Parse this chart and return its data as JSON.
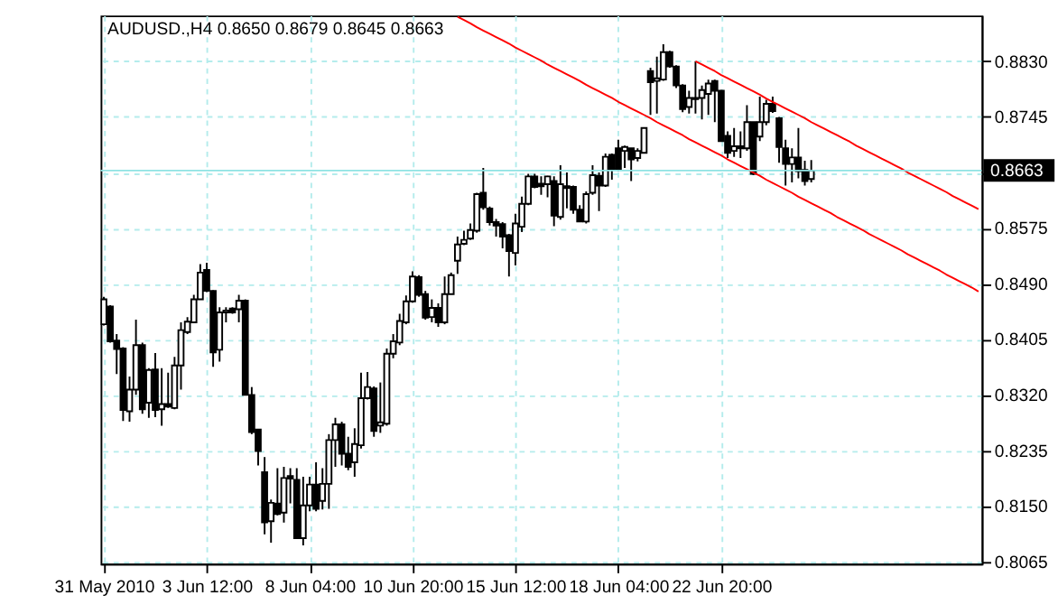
{
  "chart_data": {
    "type": "candlestick",
    "title": "AUDUSD.,H4  0.8650 0.8679 0.8645 0.8663",
    "categories": [
      "31 May 2010",
      null,
      null,
      null,
      null,
      null,
      null,
      null,
      null,
      null,
      null,
      null,
      null,
      null,
      null,
      null,
      "3 Jun 12:00",
      null,
      null,
      null,
      null,
      null,
      null,
      null,
      null,
      null,
      null,
      null,
      null,
      null,
      null,
      null,
      "8 Jun 04:00",
      null,
      null,
      null,
      null,
      null,
      null,
      null,
      null,
      null,
      null,
      null,
      null,
      null,
      null,
      null,
      "10 Jun 20:00",
      null,
      null,
      null,
      null,
      null,
      null,
      null,
      null,
      null,
      null,
      null,
      null,
      null,
      null,
      null,
      "15 Jun 12:00",
      null,
      null,
      null,
      null,
      null,
      null,
      null,
      null,
      null,
      null,
      null,
      null,
      null,
      null,
      null,
      "18 Jun 04:00",
      null,
      null,
      null,
      null,
      null,
      null,
      null,
      null,
      null,
      null,
      null,
      null,
      null,
      null,
      null,
      "22 Jun 20:00",
      null,
      null,
      null,
      null,
      null,
      null,
      null,
      null,
      null,
      null,
      null,
      null,
      null,
      null,
      null,
      null,
      null,
      null,
      null,
      null,
      null,
      null,
      null,
      null,
      null,
      null,
      null,
      null,
      null,
      null,
      null,
      null,
      null,
      null,
      null,
      null,
      null,
      null,
      null,
      null
    ],
    "ohlc": [
      [
        0.8428,
        0.847,
        0.8426,
        0.8466
      ],
      [
        0.8455,
        0.8457,
        0.84,
        0.8402
      ],
      [
        0.8403,
        0.8413,
        0.8352,
        0.839
      ],
      [
        0.8391,
        0.8393,
        0.828,
        0.8297
      ],
      [
        0.8295,
        0.8348,
        0.8279,
        0.8328
      ],
      [
        0.8328,
        0.8435,
        0.832,
        0.8396
      ],
      [
        0.8396,
        0.84,
        0.8291,
        0.8298
      ],
      [
        0.8308,
        0.8361,
        0.8285,
        0.8358
      ],
      [
        0.8359,
        0.8384,
        0.8286,
        0.8297
      ],
      [
        0.8298,
        0.8361,
        0.8273,
        0.8306
      ],
      [
        0.8306,
        0.8354,
        0.83,
        0.8302
      ],
      [
        0.83,
        0.8378,
        0.8298,
        0.8365
      ],
      [
        0.8365,
        0.8431,
        0.8328,
        0.8419
      ],
      [
        0.8416,
        0.8439,
        0.8413,
        0.8432
      ],
      [
        0.8431,
        0.8473,
        0.8431,
        0.8466
      ],
      [
        0.8466,
        0.852,
        0.8466,
        0.8507
      ],
      [
        0.8511,
        0.8522,
        0.8477,
        0.8479
      ],
      [
        0.8479,
        0.848,
        0.8363,
        0.8385
      ],
      [
        0.8389,
        0.8454,
        0.8371,
        0.8446
      ],
      [
        0.8446,
        0.8454,
        0.8431,
        0.8449
      ],
      [
        0.8452,
        0.8454,
        0.8444,
        0.8446
      ],
      [
        0.8451,
        0.8473,
        0.8431,
        0.8464
      ],
      [
        0.8464,
        0.8466,
        0.832,
        0.832
      ],
      [
        0.832,
        0.8332,
        0.826,
        0.8263
      ],
      [
        0.8267,
        0.8267,
        0.8212,
        0.8234
      ],
      [
        0.8202,
        0.8225,
        0.8107,
        0.8125
      ],
      [
        0.8127,
        0.816,
        0.8094,
        0.8155
      ],
      [
        0.8154,
        0.8208,
        0.8136,
        0.8138
      ],
      [
        0.814,
        0.821,
        0.8125,
        0.8193
      ],
      [
        0.8196,
        0.8208,
        0.8154,
        0.8192
      ],
      [
        0.819,
        0.8208,
        0.8101,
        0.8101
      ],
      [
        0.8101,
        0.8195,
        0.809,
        0.8151
      ],
      [
        0.8151,
        0.8195,
        0.8142,
        0.8183
      ],
      [
        0.8183,
        0.8217,
        0.8142,
        0.8146
      ],
      [
        0.8158,
        0.8208,
        0.8145,
        0.8184
      ],
      [
        0.8184,
        0.826,
        0.8146,
        0.8251
      ],
      [
        0.8251,
        0.8285,
        0.821,
        0.8275
      ],
      [
        0.8275,
        0.8279,
        0.8212,
        0.823
      ],
      [
        0.823,
        0.8256,
        0.8205,
        0.821
      ],
      [
        0.8217,
        0.8269,
        0.8195,
        0.8245
      ],
      [
        0.8243,
        0.8354,
        0.8238,
        0.8315
      ],
      [
        0.8315,
        0.8355,
        0.8313,
        0.8332
      ],
      [
        0.833,
        0.8333,
        0.8256,
        0.8265
      ],
      [
        0.8273,
        0.8339,
        0.8262,
        0.8278
      ],
      [
        0.8276,
        0.8391,
        0.8273,
        0.8383
      ],
      [
        0.8383,
        0.8413,
        0.8376,
        0.8402
      ],
      [
        0.84,
        0.8444,
        0.8396,
        0.8433
      ],
      [
        0.8431,
        0.8472,
        0.8428,
        0.8463
      ],
      [
        0.8463,
        0.8509,
        0.8461,
        0.8501
      ],
      [
        0.85,
        0.8503,
        0.847,
        0.8473
      ],
      [
        0.8474,
        0.8479,
        0.8435,
        0.8438
      ],
      [
        0.8439,
        0.8466,
        0.8431,
        0.8453
      ],
      [
        0.8453,
        0.846,
        0.8424,
        0.8431
      ],
      [
        0.8431,
        0.8501,
        0.8428,
        0.8474
      ],
      [
        0.8474,
        0.8507,
        0.8474,
        0.8503
      ],
      [
        0.8525,
        0.8562,
        0.8505,
        0.855
      ],
      [
        0.8551,
        0.8571,
        0.8549,
        0.8557
      ],
      [
        0.8559,
        0.8582,
        0.8557,
        0.8572
      ],
      [
        0.8571,
        0.8629,
        0.8568,
        0.8627
      ],
      [
        0.8629,
        0.8667,
        0.8603,
        0.8607
      ],
      [
        0.8605,
        0.8608,
        0.8579,
        0.8584
      ],
      [
        0.8584,
        0.8589,
        0.8562,
        0.8579
      ],
      [
        0.8581,
        0.8584,
        0.8544,
        0.8562
      ],
      [
        0.8564,
        0.8566,
        0.8501,
        0.854
      ],
      [
        0.8537,
        0.8597,
        0.8518,
        0.8582
      ],
      [
        0.8577,
        0.8623,
        0.8569,
        0.8612
      ],
      [
        0.8612,
        0.8658,
        0.861,
        0.8654
      ],
      [
        0.8654,
        0.8658,
        0.8636,
        0.8638
      ],
      [
        0.8643,
        0.8654,
        0.8626,
        0.8639
      ],
      [
        0.8642,
        0.8655,
        0.8622,
        0.8654
      ],
      [
        0.8647,
        0.8654,
        0.8578,
        0.8594
      ],
      [
        0.8592,
        0.8671,
        0.8588,
        0.8642
      ],
      [
        0.8639,
        0.866,
        0.8605,
        0.8636
      ],
      [
        0.8638,
        0.864,
        0.8597,
        0.8603
      ],
      [
        0.8603,
        0.861,
        0.8584,
        0.8585
      ],
      [
        0.8585,
        0.8631,
        0.8582,
        0.8627
      ],
      [
        0.8629,
        0.8671,
        0.8626,
        0.8656
      ],
      [
        0.8655,
        0.866,
        0.8601,
        0.864
      ],
      [
        0.864,
        0.8689,
        0.8638,
        0.8684
      ],
      [
        0.8687,
        0.8689,
        0.8649,
        0.8664
      ],
      [
        0.8697,
        0.871,
        0.8662,
        0.8664
      ],
      [
        0.8693,
        0.8701,
        0.8667,
        0.8699
      ],
      [
        0.8697,
        0.8697,
        0.8647,
        0.868
      ],
      [
        0.8682,
        0.8697,
        0.8677,
        0.8693
      ],
      [
        0.869,
        0.8728,
        0.8689,
        0.8728
      ],
      [
        0.8815,
        0.882,
        0.8748,
        0.8798
      ],
      [
        0.88,
        0.8837,
        0.875,
        0.8804
      ],
      [
        0.8802,
        0.8856,
        0.88,
        0.8844
      ],
      [
        0.8844,
        0.8846,
        0.882,
        0.8822
      ],
      [
        0.8822,
        0.8824,
        0.8789,
        0.8793
      ],
      [
        0.8793,
        0.8795,
        0.8752,
        0.8757
      ],
      [
        0.876,
        0.8785,
        0.875,
        0.8774
      ],
      [
        0.8774,
        0.883,
        0.875,
        0.8772
      ],
      [
        0.8774,
        0.8793,
        0.8741,
        0.8786
      ],
      [
        0.878,
        0.8802,
        0.8748,
        0.8796
      ],
      [
        0.88,
        0.8802,
        0.8737,
        0.8785
      ],
      [
        0.8785,
        0.8786,
        0.8708,
        0.8708
      ],
      [
        0.8716,
        0.8723,
        0.8682,
        0.869
      ],
      [
        0.8693,
        0.8728,
        0.8684,
        0.87
      ],
      [
        0.87,
        0.8723,
        0.8682,
        0.8697
      ],
      [
        0.8697,
        0.8763,
        0.8693,
        0.8737
      ],
      [
        0.8737,
        0.8737,
        0.8656,
        0.8658
      ],
      [
        0.8715,
        0.8776,
        0.8708,
        0.8737
      ],
      [
        0.8737,
        0.8771,
        0.8732,
        0.8765
      ],
      [
        0.8765,
        0.8776,
        0.8751,
        0.8754
      ],
      [
        0.8743,
        0.8745,
        0.8675,
        0.8699
      ],
      [
        0.8697,
        0.871,
        0.864,
        0.8673
      ],
      [
        0.8673,
        0.8697,
        0.8645,
        0.8683
      ],
      [
        0.8683,
        0.8728,
        0.8651,
        0.8662
      ],
      [
        0.8664,
        0.8678,
        0.864,
        0.8647
      ],
      [
        0.865,
        0.8679,
        0.8645,
        0.8663
      ],
      null,
      null,
      null,
      null,
      null,
      null,
      null,
      null,
      null,
      null,
      null,
      null,
      null,
      null,
      null,
      null,
      null,
      null,
      null,
      null,
      null,
      null,
      null,
      null,
      null,
      null
    ],
    "series": [
      {
        "type": "line",
        "color": "#ff0000",
        "values": [
          null,
          null,
          null,
          null,
          null,
          null,
          null,
          null,
          null,
          null,
          null,
          null,
          null,
          null,
          null,
          null,
          null,
          null,
          null,
          null,
          null,
          null,
          null,
          null,
          null,
          null,
          null,
          null,
          null,
          null,
          null,
          null,
          null,
          null,
          null,
          null,
          null,
          null,
          null,
          null,
          null,
          null,
          null,
          null,
          null,
          null,
          null,
          null,
          null,
          null,
          null,
          null,
          null,
          null,
          null,
          null,
          null,
          null,
          null,
          null,
          null,
          null,
          null,
          null,
          null,
          null,
          null,
          null,
          null,
          null,
          null,
          null,
          null,
          null,
          null,
          null,
          null,
          null,
          null,
          null,
          null,
          null,
          null,
          null,
          null,
          null,
          null,
          null,
          null,
          null,
          null,
          null,
          0.883,
          0.8825,
          0.882,
          0.8815,
          0.8809,
          0.8804,
          0.8799,
          0.8794,
          0.8789,
          0.8784,
          0.8779,
          0.8773,
          0.8768,
          0.8763,
          0.8758,
          0.8753,
          0.8748,
          0.8743,
          0.8737,
          0.8732,
          0.8727,
          0.8722,
          0.8717,
          0.8712,
          0.8707,
          0.8701,
          0.8696,
          0.8691,
          0.8686,
          0.8681,
          0.8676,
          0.8671,
          0.8666,
          0.866,
          0.8655,
          0.865,
          0.8645,
          0.864,
          0.8635,
          0.863,
          0.8624,
          0.8619,
          0.8614,
          0.8609,
          0.8604
        ]
      },
      {
        "type": "line",
        "color": "#ff0000",
        "values": [
          null,
          null,
          null,
          null,
          null,
          null,
          null,
          null,
          null,
          null,
          null,
          null,
          null,
          null,
          null,
          null,
          null,
          null,
          null,
          null,
          null,
          null,
          null,
          null,
          null,
          null,
          null,
          null,
          null,
          null,
          null,
          null,
          null,
          null,
          null,
          null,
          null,
          null,
          null,
          null,
          null,
          null,
          null,
          null,
          null,
          null,
          null,
          null,
          null,
          null,
          null,
          null,
          null,
          null,
          null,
          0.8898,
          0.8893,
          0.8888,
          0.8882,
          0.8877,
          0.8872,
          0.8867,
          0.8862,
          0.8857,
          0.8851,
          0.8846,
          0.8841,
          0.8836,
          0.8831,
          0.8825,
          0.882,
          0.8815,
          0.881,
          0.8805,
          0.88,
          0.8794,
          0.8789,
          0.8784,
          0.8779,
          0.8774,
          0.8768,
          0.8763,
          0.8758,
          0.8753,
          0.8748,
          0.8743,
          0.8737,
          0.8732,
          0.8727,
          0.8722,
          0.8717,
          0.8711,
          0.8706,
          0.8701,
          0.8696,
          0.8691,
          0.8686,
          0.868,
          0.8675,
          0.867,
          0.8665,
          0.866,
          0.8655,
          0.8649,
          0.8644,
          0.8639,
          0.8634,
          0.8629,
          0.8623,
          0.8618,
          0.8613,
          0.8608,
          0.8603,
          0.8598,
          0.8592,
          0.8587,
          0.8582,
          0.8577,
          0.8572,
          0.8566,
          0.8561,
          0.8556,
          0.8551,
          0.8546,
          0.8541,
          0.8535,
          0.853,
          0.8525,
          0.852,
          0.8515,
          0.851,
          0.8504,
          0.8499,
          0.8494,
          0.8489,
          0.8484,
          0.8478
        ]
      }
    ],
    "ylim": [
      0.8062,
      0.89
    ],
    "yticks": [
      {
        "value": 0.8065,
        "label": "0.8065"
      },
      {
        "value": 0.815,
        "label": "0.8150"
      },
      {
        "value": 0.8235,
        "label": "0.8235"
      },
      {
        "value": 0.832,
        "label": "0.8320"
      },
      {
        "value": 0.8405,
        "label": "0.8405"
      },
      {
        "value": 0.849,
        "label": "0.8490"
      },
      {
        "value": 0.8575,
        "label": "0.8575"
      },
      {
        "value": 0.866,
        "label": null
      },
      {
        "value": 0.8745,
        "label": "0.8745"
      },
      {
        "value": 0.883,
        "label": "0.8830"
      }
    ],
    "ref_lines": [
      {
        "axis": "y",
        "value": 0.8663,
        "label": "0.8663",
        "color": "#8fe3e3"
      }
    ],
    "grid": true
  }
}
